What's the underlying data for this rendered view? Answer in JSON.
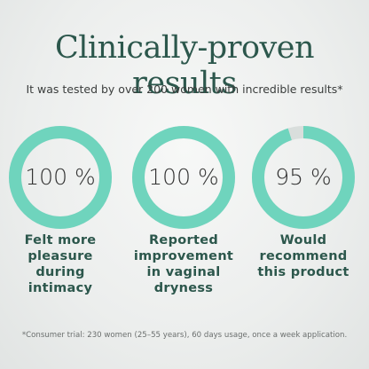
{
  "title": "Clinically-proven results",
  "subtitle": "It was tested by over 200 women with incredible results*",
  "footnote": "*Consumer trial: 230 women (25–55 years), 60 days usage, once a week application.",
  "chart_data": {
    "type": "donut",
    "categories": [
      "Felt more pleasure during intimacy",
      "Reported improvement in vaginal dryness",
      "Would recommend this product"
    ],
    "values": [
      100,
      100,
      95
    ],
    "value_labels": [
      "100 %",
      "100 %",
      "95 %"
    ],
    "ylim": [
      0,
      100
    ],
    "color": "#6fd4bd",
    "track_color": "#d9dedc"
  }
}
